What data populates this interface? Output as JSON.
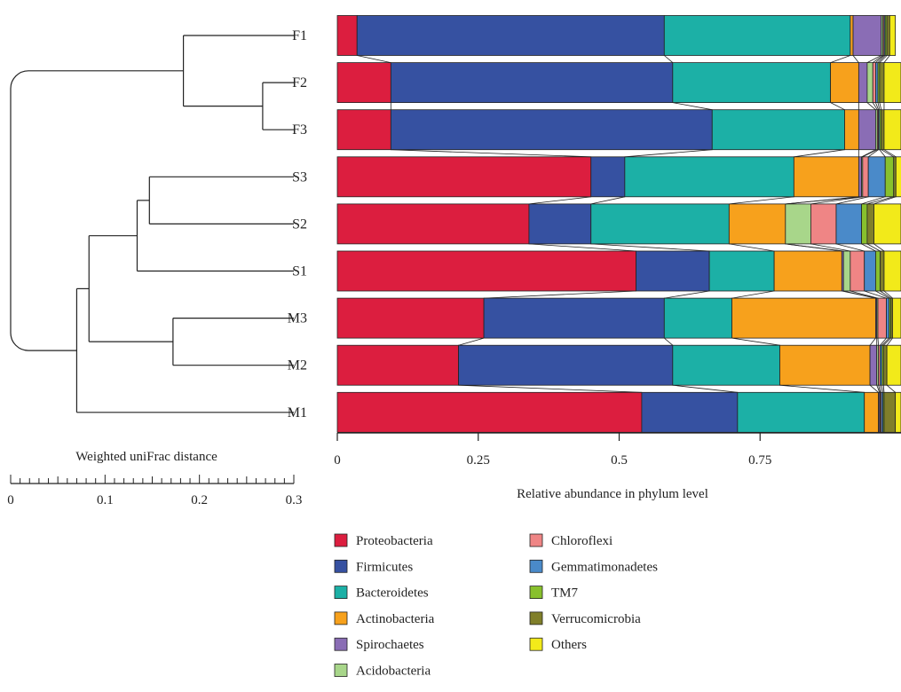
{
  "chart_data": [
    {
      "type": "dendrogram",
      "samples": [
        "F1",
        "F2",
        "F3",
        "S3",
        "S2",
        "S1",
        "M3",
        "M2",
        "M1"
      ],
      "tree": {
        "children": [
          {
            "height": 0.117,
            "children": [
              {
                "leaf": "F1"
              },
              {
                "height": 0.033,
                "children": [
                  {
                    "leaf": "F2"
                  },
                  {
                    "leaf": "F3"
                  }
                ]
              }
            ]
          },
          {
            "height": 0.23,
            "children": [
              {
                "height": 0.217,
                "children": [
                  {
                    "height": 0.166,
                    "children": [
                      {
                        "height": 0.153,
                        "children": [
                          {
                            "leaf": "S3"
                          },
                          {
                            "leaf": "S2"
                          }
                        ]
                      },
                      {
                        "leaf": "S1"
                      }
                    ]
                  },
                  {
                    "height": 0.128,
                    "children": [
                      {
                        "leaf": "M3"
                      },
                      {
                        "leaf": "M2"
                      }
                    ]
                  }
                ]
              },
              {
                "leaf": "M1"
              }
            ]
          }
        ]
      },
      "xlabel": "Weighted uniFrac distance",
      "xlim": [
        0,
        0.3
      ],
      "ticks": [
        0,
        0.1,
        0.2,
        0.3
      ],
      "tick_labels": [
        "0",
        "0.1",
        "0.2",
        "0.3"
      ],
      "minor_tick_step": 0.01
    },
    {
      "type": "bar",
      "orientation": "horizontal",
      "stacked": true,
      "categories": [
        "F1",
        "F2",
        "F3",
        "S3",
        "S2",
        "S1",
        "M3",
        "M2",
        "M1"
      ],
      "xlabel": "Relative abundance in phylum level",
      "xlim": [
        0,
        1
      ],
      "ticks": [
        0,
        0.25,
        0.5,
        0.75
      ],
      "tick_labels": [
        "0",
        "0.25",
        "0.5",
        "0.75"
      ],
      "connector_lines": true,
      "legend_position": "bottom",
      "series": [
        {
          "name": "Proteobacteria",
          "color": "#dc1e3f",
          "values": [
            0.035,
            0.095,
            0.095,
            0.45,
            0.34,
            0.53,
            0.26,
            0.215,
            0.54
          ]
        },
        {
          "name": "Firmicutes",
          "color": "#3651a1",
          "values": [
            0.545,
            0.5,
            0.57,
            0.06,
            0.11,
            0.13,
            0.32,
            0.38,
            0.17
          ]
        },
        {
          "name": "Bacteroidetes",
          "color": "#1cb0a6",
          "values": [
            0.33,
            0.28,
            0.235,
            0.3,
            0.245,
            0.115,
            0.12,
            0.19,
            0.225
          ]
        },
        {
          "name": "Actinobacteria",
          "color": "#f7a11c",
          "values": [
            0.005,
            0.05,
            0.025,
            0.115,
            0.1,
            0.12,
            0.255,
            0.16,
            0.025
          ]
        },
        {
          "name": "Spirochaetes",
          "color": "#8a6db5",
          "values": [
            0.05,
            0.015,
            0.03,
            0.005,
            0.0,
            0.003,
            0.002,
            0.012,
            0.002
          ]
        },
        {
          "name": "Acidobacteria",
          "color": "#a8d68a",
          "values": [
            0.003,
            0.01,
            0.003,
            0.002,
            0.045,
            0.012,
            0.002,
            0.003,
            0.001
          ]
        },
        {
          "name": "Chloroflexi",
          "color": "#ef8585",
          "values": [
            0.002,
            0.005,
            0.002,
            0.01,
            0.045,
            0.025,
            0.015,
            0.003,
            0.002
          ]
        },
        {
          "name": "Gemmatimonadetes",
          "color": "#4a8ac9",
          "values": [
            0.002,
            0.004,
            0.002,
            0.03,
            0.045,
            0.02,
            0.005,
            0.003,
            0.003
          ]
        },
        {
          "name": "TM7",
          "color": "#88c02d",
          "values": [
            0.003,
            0.003,
            0.003,
            0.015,
            0.01,
            0.008,
            0.003,
            0.003,
            0.002
          ]
        },
        {
          "name": "Verrucomicrobia",
          "color": "#807f2a",
          "values": [
            0.005,
            0.008,
            0.005,
            0.004,
            0.012,
            0.007,
            0.003,
            0.006,
            0.02
          ]
        },
        {
          "name": "Others",
          "color": "#f2ea1a",
          "values": [
            0.01,
            0.03,
            0.03,
            0.019,
            0.048,
            0.03,
            0.015,
            0.025,
            0.01
          ]
        }
      ]
    }
  ]
}
